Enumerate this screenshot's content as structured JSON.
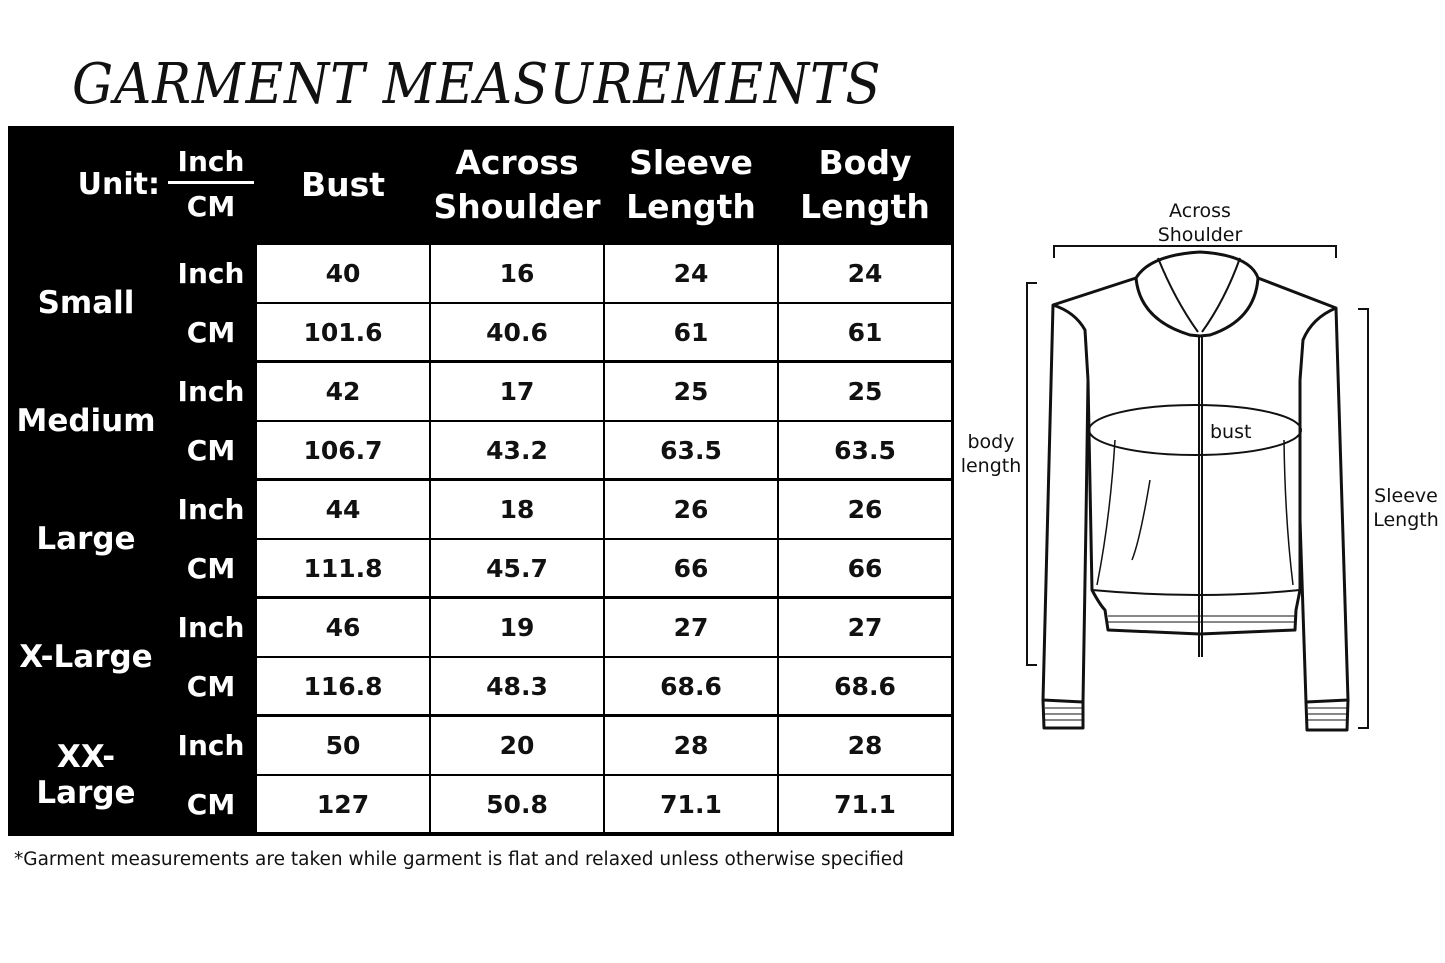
{
  "title": "GARMENT MEASUREMENTS",
  "table": {
    "unit_label": "Unit:",
    "unit_top": "Inch",
    "unit_bottom": "CM",
    "columns": [
      "Bust",
      "Across Shoulder",
      "Sleeve Length",
      "Body Length"
    ],
    "rows": [
      {
        "size": "Small",
        "inch_label": "Inch",
        "cm_label": "CM",
        "inch": [
          "40",
          "16",
          "24",
          "24"
        ],
        "cm": [
          "101.6",
          "40.6",
          "61",
          "61"
        ]
      },
      {
        "size": "Medium",
        "inch_label": "Inch",
        "cm_label": "CM",
        "inch": [
          "42",
          "17",
          "25",
          "25"
        ],
        "cm": [
          "106.7",
          "43.2",
          "63.5",
          "63.5"
        ]
      },
      {
        "size": "Large",
        "inch_label": "Inch",
        "cm_label": "CM",
        "inch": [
          "44",
          "18",
          "26",
          "26"
        ],
        "cm": [
          "111.8",
          "45.7",
          "66",
          "66"
        ]
      },
      {
        "size": "X-Large",
        "inch_label": "Inch",
        "cm_label": "CM",
        "inch": [
          "46",
          "19",
          "27",
          "27"
        ],
        "cm": [
          "116.8",
          "48.3",
          "68.6",
          "68.6"
        ]
      },
      {
        "size": "XX-Large",
        "inch_label": "Inch",
        "cm_label": "CM",
        "inch": [
          "50",
          "20",
          "28",
          "28"
        ],
        "cm": [
          "127",
          "50.8",
          "71.1",
          "71.1"
        ]
      }
    ]
  },
  "footnote": "*Garment measurements are taken while garment is flat and relaxed unless otherwise specified",
  "diagram": {
    "across_shoulder": "Across Shoulder",
    "bust": "bust",
    "body_length": "body length",
    "sleeve_length": "Sleeve Length"
  }
}
